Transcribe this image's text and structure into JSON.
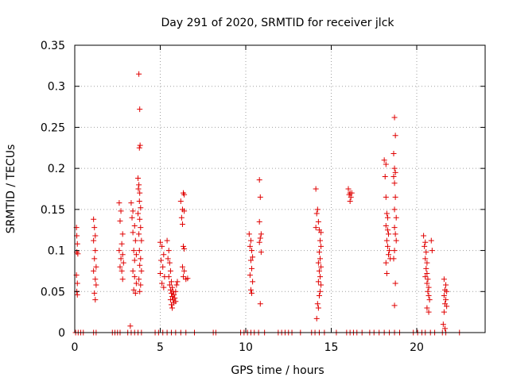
{
  "chart_data": {
    "type": "scatter",
    "title": "Day 291 of 2020, SRMTID for receiver jlck",
    "xlabel": "GPS time / hours",
    "ylabel": "SRMTID / TECUs",
    "xlim": [
      0,
      24
    ],
    "ylim": [
      0,
      0.35
    ],
    "xticks": [
      0,
      5,
      10,
      15,
      20
    ],
    "xtick_labels": [
      "0",
      "5",
      "10",
      "15",
      "20"
    ],
    "yticks": [
      0,
      0.05,
      0.1,
      0.15,
      0.2,
      0.25,
      0.3,
      0.35
    ],
    "ytick_labels": [
      "0",
      "0.05",
      "0.1",
      "0.15",
      "0.2",
      "0.25",
      "0.3",
      "0.35"
    ],
    "grid": true,
    "legend": "none",
    "colors": {
      "points": "#e00000",
      "grid": "#a0a0a0",
      "axes": "#000000"
    },
    "marker": "plus",
    "series": [
      {
        "name": "SRMTID",
        "points": [
          [
            0.1,
            0.128
          ],
          [
            0.12,
            0.118
          ],
          [
            0.15,
            0.108
          ],
          [
            0.12,
            0.098
          ],
          [
            0.18,
            0.096
          ],
          [
            0.1,
            0.07
          ],
          [
            0.15,
            0.06
          ],
          [
            0.12,
            0.05
          ],
          [
            0.15,
            0.046
          ],
          [
            1.1,
            0.138
          ],
          [
            1.15,
            0.128
          ],
          [
            1.2,
            0.118
          ],
          [
            1.1,
            0.112
          ],
          [
            1.2,
            0.1
          ],
          [
            1.15,
            0.09
          ],
          [
            1.25,
            0.08
          ],
          [
            1.1,
            0.075
          ],
          [
            1.2,
            0.065
          ],
          [
            1.25,
            0.058
          ],
          [
            1.15,
            0.048
          ],
          [
            1.2,
            0.04
          ],
          [
            2.6,
            0.158
          ],
          [
            2.7,
            0.148
          ],
          [
            2.65,
            0.136
          ],
          [
            2.8,
            0.12
          ],
          [
            2.75,
            0.108
          ],
          [
            2.6,
            0.1
          ],
          [
            2.8,
            0.095
          ],
          [
            2.7,
            0.09
          ],
          [
            2.85,
            0.085
          ],
          [
            2.65,
            0.08
          ],
          [
            2.75,
            0.075
          ],
          [
            2.8,
            0.065
          ],
          [
            3.3,
            0.158
          ],
          [
            3.4,
            0.148
          ],
          [
            3.35,
            0.14
          ],
          [
            3.5,
            0.13
          ],
          [
            3.4,
            0.122
          ],
          [
            3.55,
            0.112
          ],
          [
            3.45,
            0.1
          ],
          [
            3.6,
            0.095
          ],
          [
            3.5,
            0.088
          ],
          [
            3.4,
            0.075
          ],
          [
            3.5,
            0.068
          ],
          [
            3.6,
            0.06
          ],
          [
            3.45,
            0.052
          ],
          [
            3.55,
            0.048
          ],
          [
            3.25,
            0.008
          ],
          [
            3.75,
            0.315
          ],
          [
            3.8,
            0.272
          ],
          [
            3.82,
            0.228
          ],
          [
            3.78,
            0.225
          ],
          [
            3.7,
            0.188
          ],
          [
            3.75,
            0.18
          ],
          [
            3.72,
            0.175
          ],
          [
            3.8,
            0.17
          ],
          [
            3.78,
            0.16
          ],
          [
            3.85,
            0.152
          ],
          [
            3.7,
            0.145
          ],
          [
            3.8,
            0.138
          ],
          [
            3.85,
            0.128
          ],
          [
            3.75,
            0.12
          ],
          [
            3.9,
            0.112
          ],
          [
            3.78,
            0.1
          ],
          [
            3.85,
            0.09
          ],
          [
            3.8,
            0.082
          ],
          [
            3.9,
            0.075
          ],
          [
            3.75,
            0.065
          ],
          [
            3.85,
            0.058
          ],
          [
            3.8,
            0.05
          ],
          [
            5.0,
            0.11
          ],
          [
            5.1,
            0.105
          ],
          [
            5.2,
            0.095
          ],
          [
            5.05,
            0.088
          ],
          [
            5.15,
            0.08
          ],
          [
            5.0,
            0.072
          ],
          [
            5.25,
            0.068
          ],
          [
            5.1,
            0.06
          ],
          [
            5.2,
            0.055
          ],
          [
            5.4,
            0.112
          ],
          [
            5.5,
            0.1
          ],
          [
            5.45,
            0.09
          ],
          [
            5.55,
            0.085
          ],
          [
            5.6,
            0.075
          ],
          [
            5.5,
            0.068
          ],
          [
            5.65,
            0.062
          ],
          [
            5.55,
            0.058
          ],
          [
            5.7,
            0.055
          ],
          [
            5.6,
            0.052
          ],
          [
            5.75,
            0.05
          ],
          [
            5.65,
            0.048
          ],
          [
            5.8,
            0.046
          ],
          [
            5.7,
            0.044
          ],
          [
            5.85,
            0.042
          ],
          [
            5.75,
            0.04
          ],
          [
            5.9,
            0.038
          ],
          [
            5.8,
            0.036
          ],
          [
            5.65,
            0.034
          ],
          [
            5.7,
            0.03
          ],
          [
            5.9,
            0.05
          ],
          [
            5.95,
            0.058
          ],
          [
            6.0,
            0.062
          ],
          [
            5.6,
            0.04
          ],
          [
            6.2,
            0.16
          ],
          [
            6.35,
            0.17
          ],
          [
            6.4,
            0.168
          ],
          [
            6.3,
            0.15
          ],
          [
            6.4,
            0.148
          ],
          [
            6.25,
            0.14
          ],
          [
            6.3,
            0.132
          ],
          [
            6.35,
            0.105
          ],
          [
            6.4,
            0.102
          ],
          [
            6.3,
            0.08
          ],
          [
            6.4,
            0.075
          ],
          [
            6.35,
            0.068
          ],
          [
            6.5,
            0.065
          ],
          [
            6.6,
            0.066
          ],
          [
            10.2,
            0.12
          ],
          [
            10.3,
            0.112
          ],
          [
            10.25,
            0.105
          ],
          [
            10.35,
            0.1
          ],
          [
            10.4,
            0.092
          ],
          [
            10.3,
            0.088
          ],
          [
            10.35,
            0.078
          ],
          [
            10.25,
            0.07
          ],
          [
            10.4,
            0.062
          ],
          [
            10.3,
            0.052
          ],
          [
            10.35,
            0.048
          ],
          [
            10.8,
            0.186
          ],
          [
            10.85,
            0.165
          ],
          [
            10.8,
            0.135
          ],
          [
            10.9,
            0.12
          ],
          [
            10.85,
            0.115
          ],
          [
            10.8,
            0.11
          ],
          [
            10.9,
            0.098
          ],
          [
            10.85,
            0.035
          ],
          [
            14.1,
            0.175
          ],
          [
            14.2,
            0.15
          ],
          [
            14.15,
            0.145
          ],
          [
            14.25,
            0.135
          ],
          [
            14.1,
            0.128
          ],
          [
            14.3,
            0.125
          ],
          [
            14.4,
            0.122
          ],
          [
            14.35,
            0.112
          ],
          [
            14.4,
            0.105
          ],
          [
            14.3,
            0.098
          ],
          [
            14.35,
            0.09
          ],
          [
            14.25,
            0.085
          ],
          [
            14.4,
            0.08
          ],
          [
            14.3,
            0.075
          ],
          [
            14.35,
            0.068
          ],
          [
            14.25,
            0.062
          ],
          [
            14.4,
            0.058
          ],
          [
            14.35,
            0.05
          ],
          [
            14.3,
            0.045
          ],
          [
            14.2,
            0.035
          ],
          [
            14.25,
            0.03
          ],
          [
            14.15,
            0.017
          ],
          [
            16.0,
            0.175
          ],
          [
            16.1,
            0.17
          ],
          [
            16.05,
            0.168
          ],
          [
            16.15,
            0.165
          ],
          [
            16.1,
            0.16
          ],
          [
            16.2,
            0.17
          ],
          [
            18.1,
            0.21
          ],
          [
            18.2,
            0.205
          ],
          [
            18.15,
            0.19
          ],
          [
            18.2,
            0.165
          ],
          [
            18.25,
            0.145
          ],
          [
            18.3,
            0.14
          ],
          [
            18.2,
            0.13
          ],
          [
            18.3,
            0.125
          ],
          [
            18.35,
            0.12
          ],
          [
            18.25,
            0.112
          ],
          [
            18.3,
            0.105
          ],
          [
            18.4,
            0.1
          ],
          [
            18.35,
            0.095
          ],
          [
            18.45,
            0.09
          ],
          [
            18.2,
            0.085
          ],
          [
            18.25,
            0.072
          ],
          [
            18.7,
            0.262
          ],
          [
            18.75,
            0.24
          ],
          [
            18.65,
            0.218
          ],
          [
            18.7,
            0.2
          ],
          [
            18.75,
            0.195
          ],
          [
            18.65,
            0.19
          ],
          [
            18.7,
            0.182
          ],
          [
            18.75,
            0.165
          ],
          [
            18.7,
            0.15
          ],
          [
            18.8,
            0.14
          ],
          [
            18.7,
            0.128
          ],
          [
            18.75,
            0.12
          ],
          [
            18.8,
            0.112
          ],
          [
            18.7,
            0.1
          ],
          [
            18.65,
            0.09
          ],
          [
            18.75,
            0.06
          ],
          [
            18.7,
            0.033
          ],
          [
            20.4,
            0.118
          ],
          [
            20.5,
            0.11
          ],
          [
            20.45,
            0.105
          ],
          [
            20.55,
            0.098
          ],
          [
            20.5,
            0.09
          ],
          [
            20.6,
            0.085
          ],
          [
            20.55,
            0.078
          ],
          [
            20.6,
            0.072
          ],
          [
            20.5,
            0.068
          ],
          [
            20.65,
            0.065
          ],
          [
            20.6,
            0.06
          ],
          [
            20.7,
            0.055
          ],
          [
            20.65,
            0.05
          ],
          [
            20.7,
            0.045
          ],
          [
            20.75,
            0.04
          ],
          [
            20.6,
            0.03
          ],
          [
            20.7,
            0.025
          ],
          [
            20.9,
            0.1
          ],
          [
            20.85,
            0.112
          ],
          [
            21.6,
            0.065
          ],
          [
            21.7,
            0.058
          ],
          [
            21.65,
            0.052
          ],
          [
            21.75,
            0.05
          ],
          [
            21.6,
            0.045
          ],
          [
            21.7,
            0.04
          ],
          [
            21.65,
            0.035
          ],
          [
            21.75,
            0.032
          ],
          [
            21.6,
            0.025
          ],
          [
            21.55,
            0.01
          ],
          [
            21.65,
            0.005
          ],
          [
            0.05,
            0.0
          ],
          [
            0.2,
            0.0
          ],
          [
            0.35,
            0.0
          ],
          [
            0.5,
            0.0
          ],
          [
            1.1,
            0.0
          ],
          [
            1.25,
            0.0
          ],
          [
            2.2,
            0.0
          ],
          [
            2.35,
            0.0
          ],
          [
            2.5,
            0.0
          ],
          [
            2.65,
            0.0
          ],
          [
            3.1,
            0.0
          ],
          [
            3.3,
            0.0
          ],
          [
            3.5,
            0.0
          ],
          [
            3.7,
            0.0
          ],
          [
            3.9,
            0.0
          ],
          [
            4.7,
            0.0
          ],
          [
            4.9,
            0.0
          ],
          [
            5.15,
            0.0
          ],
          [
            5.4,
            0.0
          ],
          [
            5.65,
            0.0
          ],
          [
            5.9,
            0.0
          ],
          [
            6.2,
            0.0
          ],
          [
            6.5,
            0.0
          ],
          [
            7.0,
            0.0
          ],
          [
            8.1,
            0.0
          ],
          [
            8.25,
            0.0
          ],
          [
            9.7,
            0.0
          ],
          [
            9.9,
            0.0
          ],
          [
            10.1,
            0.0
          ],
          [
            10.3,
            0.0
          ],
          [
            10.5,
            0.0
          ],
          [
            10.75,
            0.0
          ],
          [
            11.1,
            0.0
          ],
          [
            11.9,
            0.0
          ],
          [
            12.1,
            0.0
          ],
          [
            12.3,
            0.0
          ],
          [
            12.5,
            0.0
          ],
          [
            12.7,
            0.0
          ],
          [
            13.2,
            0.0
          ],
          [
            13.85,
            0.0
          ],
          [
            14.05,
            0.0
          ],
          [
            14.3,
            0.0
          ],
          [
            14.6,
            0.0
          ],
          [
            15.3,
            0.0
          ],
          [
            15.9,
            0.0
          ],
          [
            16.1,
            0.0
          ],
          [
            16.3,
            0.0
          ],
          [
            16.5,
            0.0
          ],
          [
            16.8,
            0.0
          ],
          [
            17.25,
            0.0
          ],
          [
            17.5,
            0.0
          ],
          [
            17.8,
            0.0
          ],
          [
            18.1,
            0.0
          ],
          [
            18.4,
            0.0
          ],
          [
            18.7,
            0.0
          ],
          [
            19.0,
            0.0
          ],
          [
            19.8,
            0.0
          ],
          [
            20.05,
            0.0
          ],
          [
            20.3,
            0.0
          ],
          [
            20.5,
            0.0
          ],
          [
            20.8,
            0.0
          ],
          [
            21.05,
            0.0
          ],
          [
            21.5,
            0.0
          ],
          [
            21.7,
            0.0
          ],
          [
            22.5,
            0.0
          ]
        ]
      }
    ]
  }
}
